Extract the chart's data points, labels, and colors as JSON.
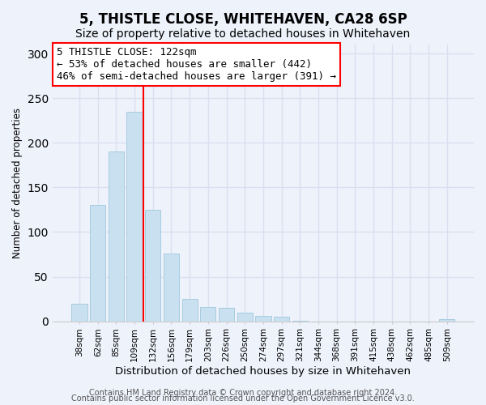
{
  "title": "5, THISTLE CLOSE, WHITEHAVEN, CA28 6SP",
  "subtitle": "Size of property relative to detached houses in Whitehaven",
  "xlabel": "Distribution of detached houses by size in Whitehaven",
  "ylabel": "Number of detached properties",
  "bar_labels": [
    "38sqm",
    "62sqm",
    "85sqm",
    "109sqm",
    "132sqm",
    "156sqm",
    "179sqm",
    "203sqm",
    "226sqm",
    "250sqm",
    "274sqm",
    "297sqm",
    "321sqm",
    "344sqm",
    "368sqm",
    "391sqm",
    "415sqm",
    "438sqm",
    "462sqm",
    "485sqm",
    "509sqm"
  ],
  "bar_values": [
    20,
    130,
    190,
    235,
    125,
    76,
    25,
    16,
    15,
    10,
    6,
    5,
    1,
    0,
    0,
    0,
    0,
    0,
    0,
    0,
    2
  ],
  "bar_color": "#c9e0f0",
  "bar_edge_color": "#a8cce0",
  "annotation_line1": "5 THISTLE CLOSE: 122sqm",
  "annotation_line2": "← 53% of detached houses are smaller (442)",
  "annotation_line3": "46% of semi-detached houses are larger (391) →",
  "property_bar_index": 3,
  "property_line_x": 3.5,
  "ylim": [
    0,
    310
  ],
  "yticks": [
    0,
    50,
    100,
    150,
    200,
    250,
    300
  ],
  "footer_line1": "Contains HM Land Registry data © Crown copyright and database right 2024.",
  "footer_line2": "Contains public sector information licensed under the Open Government Licence v3.0.",
  "bg_color": "#eef2fb",
  "grid_color": "#d8e0f0",
  "title_fontsize": 12,
  "subtitle_fontsize": 10,
  "xlabel_fontsize": 9.5,
  "ylabel_fontsize": 8.5,
  "annotation_fontsize": 9,
  "footer_fontsize": 7
}
